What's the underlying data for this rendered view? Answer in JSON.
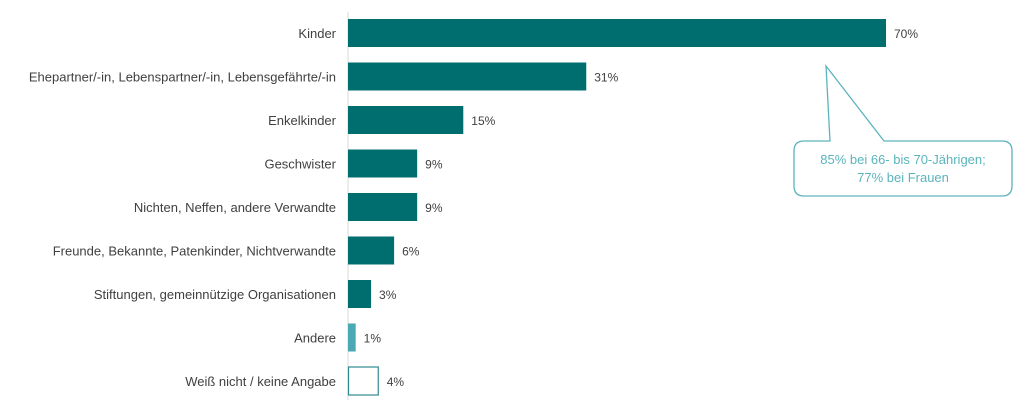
{
  "chart_data": {
    "type": "bar",
    "orientation": "horizontal",
    "categories": [
      "Kinder",
      "Ehepartner/-in, Lebenspartner/-in, Lebensgefährte/-in",
      "Enkelkinder",
      "Geschwister",
      "Nichten, Neffen, andere Verwandte",
      "Freunde, Bekannte, Patenkinder, Nichtverwandte",
      "Stiftungen, gemeinnützige Organisationen",
      "Andere",
      "Weiß nicht / keine Angabe"
    ],
    "values": [
      70,
      31,
      15,
      9,
      9,
      6,
      3,
      1,
      4
    ],
    "data_labels": [
      "70%",
      "31%",
      "15%",
      "9%",
      "9%",
      "6%",
      "3%",
      "1%",
      "4%"
    ],
    "bar_styles": [
      "main",
      "main",
      "main",
      "main",
      "main",
      "main",
      "main",
      "light",
      "outline"
    ],
    "xlim": [
      0,
      70
    ],
    "grid": false,
    "annotation": {
      "target_category": "Kinder",
      "lines": [
        "85% bei 66- bis 70-Jährigen;",
        "77% bei Frauen"
      ]
    }
  },
  "colors": {
    "main": "#006e6f",
    "light": "#4aa9b3",
    "outline": "#2f8a90",
    "callout": "#5ab4bc",
    "label": "#404040",
    "axis": "#d9d9d9"
  }
}
